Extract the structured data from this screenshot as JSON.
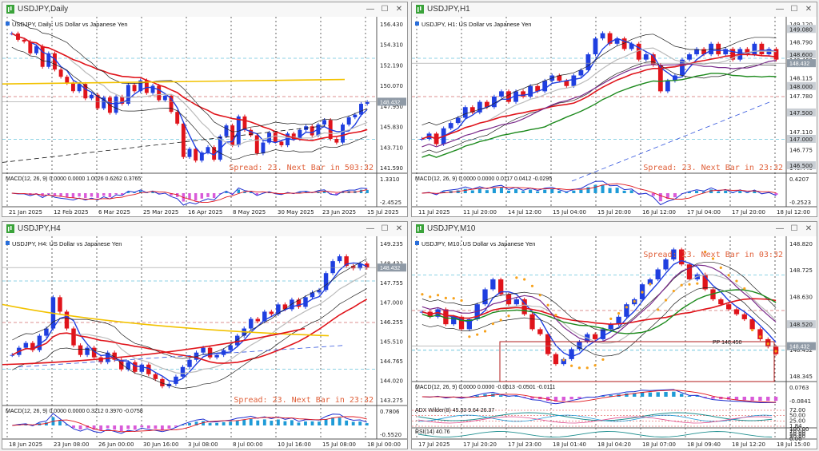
{
  "colors": {
    "up": "#1f3fe0",
    "down": "#e0141b",
    "bb": "#222222",
    "spread": "#e0603a",
    "pp": "#b01a1a",
    "green": "#1d8a1d",
    "yellow": "#f2c200",
    "purple": "#7a2a8a",
    "orange": "#f7a21b"
  },
  "windows": [
    {
      "id": "daily",
      "title": "USDJPY,Daily",
      "symbol_label": "USDJPY, Daily:  US Dollar vs Japanese Yen",
      "spread_text": "Spread: 23. Next Bar in 503:32",
      "price_labels": [
        "156.430",
        "154.310",
        "152.190",
        "150.070",
        "147.950",
        "145.830",
        "143.710",
        "141.590"
      ],
      "current_price": "148.432",
      "macd_label": "MACD(12, 26, 9) 0.0000 0.0000 1.0026 0.6262 0.3765",
      "macd_scale": [
        "1.3310",
        "-2.4525"
      ],
      "time_labels": [
        "21 Jan 2025",
        "12 Feb 2025",
        "6 Mar 2025",
        "25 Mar 2025",
        "16 Apr 2025",
        "8 May 2025",
        "30 May 2025",
        "23 Jun 2025",
        "15 Jul 2025"
      ],
      "price_range": [
        140.5,
        157.5
      ],
      "close_path": [
        156.0,
        155.3,
        155.1,
        153.8,
        154.6,
        152.3,
        153.8,
        152.0,
        151.2,
        150.5,
        149.6,
        150.4,
        148.8,
        149.2,
        147.7,
        148.9,
        147.2,
        149.0,
        148.2,
        150.3,
        149.6,
        150.8,
        149.4,
        150.2,
        148.6,
        149.1,
        147.3,
        146.0,
        142.3,
        143.2,
        141.9,
        142.8,
        143.4,
        142.0,
        144.6,
        145.8,
        143.6,
        146.8,
        145.3,
        144.7,
        142.7,
        143.9,
        145.0,
        144.0,
        143.6,
        144.9,
        144.3,
        145.3,
        145.7,
        144.7,
        145.9,
        146.4,
        144.3,
        143.9,
        145.9,
        146.7,
        147.0,
        148.2,
        148.4
      ]
    },
    {
      "id": "h1",
      "title": "USDJPY,H1",
      "symbol_label": "USDJPY, H1:  US Dollar vs Japanese Yen",
      "spread_text": "Spread: 23. Next Bar in 23:32",
      "price_labels": [
        "149.120",
        "148.790",
        "148.460",
        "148.115",
        "147.780",
        "147.450",
        "147.110",
        "146.775",
        "146.440"
      ],
      "axis_tags": [
        "149.080",
        "148.600",
        "148.432",
        "148.000",
        "147.500",
        "147.000",
        "146.500"
      ],
      "current_price": "148.432",
      "macd_label": "MACD(12, 26, 9) 0.0000 0.0000 0.0117 0.0412 -0.0295",
      "macd_scale": [
        "0.4207",
        "-0.2523"
      ],
      "time_labels": [
        "11 Jul 2025",
        "11 Jul 20:00",
        "14 Jul 12:00",
        "15 Jul 04:00",
        "15 Jul 20:00",
        "16 Jul 12:00",
        "17 Jul 04:00",
        "17 Jul 20:00",
        "18 Jul 12:00"
      ],
      "price_range": [
        146.35,
        149.25
      ],
      "close_path": [
        147.0,
        147.1,
        146.9,
        147.2,
        147.3,
        147.4,
        147.6,
        147.5,
        147.7,
        147.6,
        147.8,
        147.9,
        147.7,
        147.9,
        147.8,
        148.0,
        147.9,
        148.1,
        148.2,
        148.1,
        148.0,
        148.2,
        148.3,
        148.6,
        148.9,
        149.0,
        148.8,
        148.9,
        148.7,
        148.8,
        148.5,
        148.6,
        148.4,
        147.9,
        148.1,
        148.2,
        148.5,
        148.6,
        148.7,
        148.6,
        148.8,
        148.6,
        148.7,
        148.5,
        148.7,
        148.6,
        148.8,
        148.6,
        148.7,
        148.5
      ]
    },
    {
      "id": "h4",
      "title": "USDJPY,H4",
      "symbol_label": "USDJPY, H4:  US Dollar vs Japanese Yen",
      "spread_text": "Spread: 23. Next Bar in 23:32",
      "price_labels": [
        "149.235",
        "148.432",
        "147.755",
        "147.000",
        "146.255",
        "145.510",
        "144.765",
        "144.020",
        "143.275"
      ],
      "current_price": "148.432",
      "macd_label": "MACD(12, 26, 9) 0.0000 0.0000 0.3212 0.3970 -0.0758",
      "macd_scale": [
        "0.7806",
        "-0.5520"
      ],
      "time_labels": [
        "18 Jun 2025",
        "23 Jun 08:00",
        "26 Jun 00:00",
        "30 Jun 16:00",
        "3 Jul 08:00",
        "8 Jul 00:00",
        "10 Jul 16:00",
        "15 Jul 08:00",
        "18 Jul 00:00"
      ],
      "price_range": [
        142.7,
        149.6
      ],
      "close_path": [
        144.8,
        145.1,
        145.3,
        145.0,
        145.6,
        145.9,
        147.2,
        146.6,
        145.9,
        145.2,
        144.8,
        145.1,
        144.7,
        144.5,
        144.9,
        144.6,
        144.2,
        144.5,
        144.1,
        144.4,
        144.0,
        143.8,
        143.5,
        143.6,
        143.9,
        144.3,
        144.6,
        144.9,
        145.1,
        144.7,
        144.8,
        145.0,
        145.2,
        145.6,
        145.9,
        146.3,
        146.2,
        146.6,
        146.5,
        146.9,
        146.7,
        147.1,
        146.8,
        147.2,
        147.4,
        147.5,
        148.2,
        148.7,
        148.9,
        148.5,
        148.4,
        148.6,
        148.432
      ]
    },
    {
      "id": "m10",
      "title": "USDJPY,M10",
      "symbol_label": "USDJPY, M10:  US Dollar vs Japanese Yen",
      "spread_text": "Spread: 23. Next Bar in 03:32",
      "price_labels": [
        "148.820",
        "148.725",
        "148.630",
        "148.535",
        "148.432",
        "148.345"
      ],
      "axis_tags": [
        "148.520",
        "148.432"
      ],
      "pp_label": "PP 148.450",
      "current_price": "148.432",
      "macd_label": "MACD(12, 26, 9) 0.0000 0.0000 -0.0613 -0.0501 -0.0111",
      "macd_scale": [
        "0.0763",
        "-0.0841"
      ],
      "adx_label": "ADX Wilder(8) 45.33 9.64 26.37",
      "adx_scale": [
        "72.00",
        "50.00",
        "25.00",
        "1.84"
      ],
      "rsi_label": "RSI(14) 40.76",
      "rsi_scale": [
        "100.00",
        "70.00",
        "50.00",
        "30.00",
        "0.00"
      ],
      "time_labels": [
        "17 Jul 2025",
        "17 Jul 20:20",
        "17 Jul 23:00",
        "18 Jul 01:40",
        "18 Jul 04:20",
        "18 Jul 07:00",
        "18 Jul 09:40",
        "18 Jul 12:20",
        "18 Jul 15:00"
      ],
      "price_range": [
        148.29,
        148.86
      ],
      "close_path": [
        148.57,
        148.55,
        148.58,
        148.52,
        148.55,
        148.5,
        148.54,
        148.6,
        148.66,
        148.7,
        148.64,
        148.6,
        148.62,
        148.56,
        148.5,
        148.48,
        148.4,
        148.36,
        148.38,
        148.42,
        148.45,
        148.48,
        148.46,
        148.5,
        148.52,
        148.55,
        148.6,
        148.62,
        148.68,
        148.7,
        148.74,
        148.78,
        148.82,
        148.76,
        148.7,
        148.72,
        148.66,
        148.62,
        148.6,
        148.58,
        148.56,
        148.54,
        148.5,
        148.46,
        148.43,
        148.4
      ]
    }
  ]
}
